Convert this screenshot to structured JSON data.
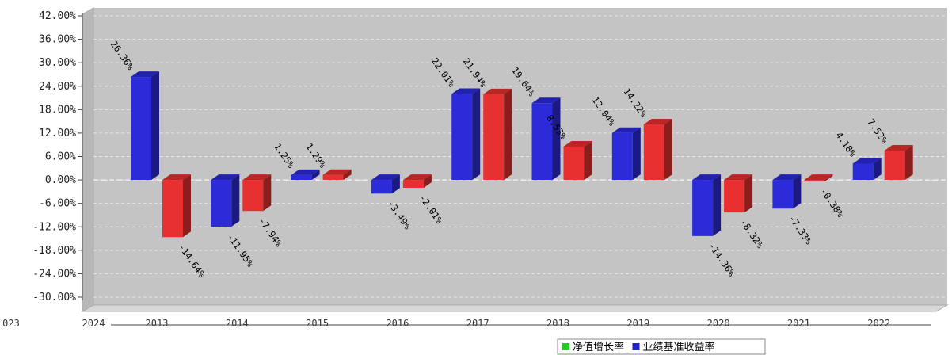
{
  "chart_data": {
    "type": "bar",
    "style": "3d-clustered",
    "grid": true,
    "legend_position": "bottom-right",
    "ylim": [
      -30,
      42
    ],
    "yticks": [
      {
        "value": 42,
        "label": "42.00%"
      },
      {
        "value": 36,
        "label": "36.00%"
      },
      {
        "value": 30,
        "label": "30.00%"
      },
      {
        "value": 24,
        "label": "24.00%"
      },
      {
        "value": 18,
        "label": "18.00%"
      },
      {
        "value": 12,
        "label": "12.00%"
      },
      {
        "value": 6,
        "label": "6.00%"
      },
      {
        "value": 0,
        "label": "0.00%"
      },
      {
        "value": -6,
        "label": "-6.00%"
      },
      {
        "value": -12,
        "label": "-12.00%"
      },
      {
        "value": -18,
        "label": "-18.00%"
      },
      {
        "value": -24,
        "label": "-24.00%"
      },
      {
        "value": -30,
        "label": "-30.00%"
      }
    ],
    "categories": [
      "2013",
      "2014",
      "2015",
      "2016",
      "2017",
      "2018",
      "2019",
      "2020",
      "2021",
      "2022"
    ],
    "series": [
      {
        "name": "净值增长率",
        "legend_color": "#22cc22",
        "color": "#2b2bd9",
        "values": [
          26.36,
          -11.95,
          1.25,
          -3.49,
          22.01,
          19.64,
          12.04,
          -14.36,
          -7.33,
          4.18
        ],
        "labels": [
          "26.36%",
          "-11.95%",
          "1.25%",
          "-3.49%",
          "22.01%",
          "19.64%",
          "12.04%",
          "-14.36%",
          "-7.33%",
          "4.18%"
        ]
      },
      {
        "name": "业绩基准收益率",
        "legend_color": "#2222cc",
        "color": "#e83030",
        "values": [
          -14.64,
          -7.94,
          1.29,
          -2.01,
          21.94,
          8.53,
          14.22,
          -8.32,
          -0.38,
          7.52
        ],
        "labels": [
          "-14.64%",
          "-7.94%",
          "1.29%",
          "-2.01%",
          "21.94%",
          "8.53%",
          "14.22%",
          "-8.32%",
          "-0.38%",
          "7.52%"
        ]
      }
    ],
    "stray_axis_labels": [
      "023",
      "2024"
    ]
  }
}
